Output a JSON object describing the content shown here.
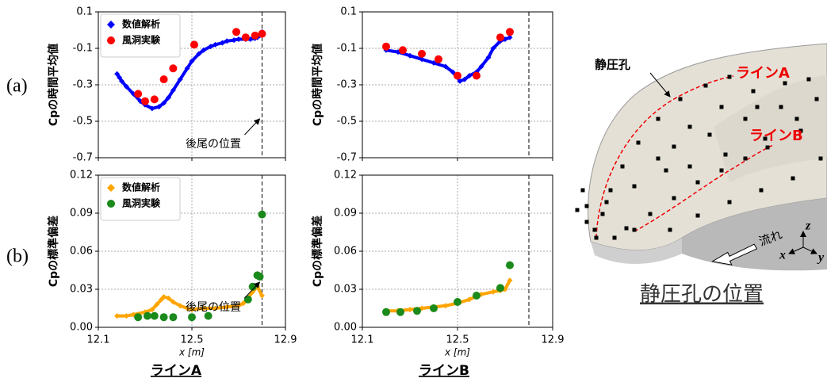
{
  "panels": [
    "(a)",
    "(b)"
  ],
  "columns": [
    "ラインA",
    "ラインB"
  ],
  "illustration": {
    "hole_label": "静圧孔",
    "line_a": "ラインA",
    "line_b": "ラインB",
    "flow": "流れ",
    "axes": [
      "x",
      "y",
      "z"
    ],
    "caption": "静圧孔の位置"
  },
  "chart_data": [
    {
      "type": "scatter",
      "ylabel": "Cpの時間平均値",
      "xlim": [
        12.1,
        12.9
      ],
      "xticks": [
        12.1,
        12.5,
        12.9
      ],
      "ylim": [
        -0.7,
        0.1
      ],
      "yticks": [
        -0.7,
        -0.5,
        -0.3,
        -0.1,
        0.1
      ],
      "grid": true,
      "legend": "upper left",
      "vline": 12.8,
      "annotation": "後尾の位置",
      "series": [
        {
          "name": "数値解析",
          "color": "#0000ff",
          "marker": "diamond",
          "line": true,
          "x": [
            12.18,
            12.19,
            12.2,
            12.22,
            12.25,
            12.28,
            12.3,
            12.33,
            12.36,
            12.38,
            12.4,
            12.42,
            12.45,
            12.48,
            12.5,
            12.53,
            12.55,
            12.58,
            12.6,
            12.63,
            12.65,
            12.68,
            12.7,
            12.73,
            12.75,
            12.77,
            12.78,
            12.79,
            12.8
          ],
          "values": [
            -0.24,
            -0.26,
            -0.28,
            -0.31,
            -0.35,
            -0.39,
            -0.41,
            -0.43,
            -0.42,
            -0.4,
            -0.37,
            -0.33,
            -0.27,
            -0.21,
            -0.17,
            -0.13,
            -0.11,
            -0.09,
            -0.08,
            -0.07,
            -0.06,
            -0.055,
            -0.05,
            -0.05,
            -0.05,
            -0.045,
            -0.04,
            -0.03,
            -0.01
          ]
        },
        {
          "name": "風洞実験",
          "color": "#ff0000",
          "marker": "circle",
          "line": false,
          "x": [
            12.27,
            12.3,
            12.34,
            12.38,
            12.42,
            12.51,
            12.69,
            12.73,
            12.77,
            12.8
          ],
          "values": [
            -0.35,
            -0.39,
            -0.38,
            -0.27,
            -0.21,
            -0.08,
            -0.01,
            -0.04,
            -0.03,
            -0.02
          ]
        }
      ]
    },
    {
      "type": "scatter",
      "ylabel": "Cpの時間平均値",
      "xlim": [
        12.1,
        12.9
      ],
      "xticks": [
        12.1,
        12.5,
        12.9
      ],
      "ylim": [
        -0.7,
        0.1
      ],
      "yticks": [
        -0.7,
        -0.5,
        -0.3,
        -0.1,
        0.1
      ],
      "grid": true,
      "vline": 12.8,
      "series": [
        {
          "color": "#0000ff",
          "marker": "diamond",
          "line": true,
          "x": [
            12.2,
            12.25,
            12.3,
            12.35,
            12.4,
            12.45,
            12.48,
            12.5,
            12.51,
            12.53,
            12.55,
            12.58,
            12.6,
            12.63,
            12.65,
            12.68,
            12.7,
            12.72
          ],
          "values": [
            -0.11,
            -0.12,
            -0.14,
            -0.16,
            -0.18,
            -0.2,
            -0.23,
            -0.26,
            -0.28,
            -0.27,
            -0.25,
            -0.23,
            -0.2,
            -0.15,
            -0.1,
            -0.06,
            -0.05,
            -0.04
          ]
        },
        {
          "color": "#ff0000",
          "marker": "circle",
          "line": false,
          "x": [
            12.2,
            12.27,
            12.35,
            12.42,
            12.5,
            12.58,
            12.68,
            12.72
          ],
          "values": [
            -0.09,
            -0.11,
            -0.13,
            -0.16,
            -0.25,
            -0.25,
            -0.04,
            -0.01
          ]
        }
      ]
    },
    {
      "type": "scatter",
      "ylabel": "Cpの標準偏差",
      "xlabel": "x [m]",
      "xlim": [
        12.1,
        12.9
      ],
      "xticks": [
        12.1,
        12.5,
        12.9
      ],
      "ylim": [
        0,
        0.12
      ],
      "yticks": [
        {
          "value": 0,
          "label": "0.00"
        },
        {
          "value": 0.03,
          "label": "0.03"
        },
        {
          "value": 0.06,
          "label": "0.06"
        },
        {
          "value": 0.09,
          "label": "0.09"
        },
        {
          "value": 0.12,
          "label": "0.12"
        }
      ],
      "grid": true,
      "legend": "upper left",
      "vline": 12.8,
      "annotation": "後尾の位置",
      "series": [
        {
          "name": "数値解析",
          "color": "#ffa500",
          "marker": "diamond",
          "line": true,
          "x": [
            12.18,
            12.22,
            12.25,
            12.3,
            12.33,
            12.35,
            12.37,
            12.38,
            12.4,
            12.42,
            12.45,
            12.48,
            12.5,
            12.55,
            12.6,
            12.65,
            12.7,
            12.72,
            12.74,
            12.76,
            12.78,
            12.8
          ],
          "values": [
            0.009,
            0.009,
            0.01,
            0.012,
            0.014,
            0.018,
            0.022,
            0.024,
            0.023,
            0.02,
            0.017,
            0.015,
            0.014,
            0.015,
            0.015,
            0.016,
            0.017,
            0.019,
            0.023,
            0.028,
            0.032,
            0.025
          ]
        },
        {
          "name": "風洞実験",
          "color": "#1a8a1a",
          "marker": "circle",
          "line": false,
          "x": [
            12.27,
            12.31,
            12.34,
            12.38,
            12.42,
            12.5,
            12.57,
            12.74,
            12.76,
            12.78,
            12.79,
            12.8
          ],
          "values": [
            0.008,
            0.009,
            0.009,
            0.008,
            0.008,
            0.008,
            0.009,
            0.022,
            0.032,
            0.041,
            0.04,
            0.089
          ]
        }
      ]
    },
    {
      "type": "scatter",
      "ylabel": "Cpの標準偏差",
      "xlabel": "x [m]",
      "xlim": [
        12.1,
        12.9
      ],
      "xticks": [
        12.1,
        12.5,
        12.9
      ],
      "ylim": [
        0,
        0.12
      ],
      "yticks": [
        {
          "value": 0,
          "label": "0.00"
        },
        {
          "value": 0.03,
          "label": "0.03"
        },
        {
          "value": 0.06,
          "label": "0.06"
        },
        {
          "value": 0.09,
          "label": "0.09"
        },
        {
          "value": 0.12,
          "label": "0.12"
        }
      ],
      "grid": true,
      "vline": 12.8,
      "series": [
        {
          "color": "#ffa500",
          "marker": "diamond",
          "line": true,
          "x": [
            12.2,
            12.25,
            12.3,
            12.35,
            12.4,
            12.45,
            12.5,
            12.55,
            12.6,
            12.65,
            12.68,
            12.7,
            12.72
          ],
          "values": [
            0.013,
            0.013,
            0.014,
            0.015,
            0.016,
            0.017,
            0.019,
            0.022,
            0.026,
            0.028,
            0.029,
            0.03,
            0.037
          ]
        },
        {
          "color": "#1a8a1a",
          "marker": "circle",
          "line": false,
          "x": [
            12.2,
            12.26,
            12.33,
            12.4,
            12.5,
            12.58,
            12.68,
            12.72
          ],
          "values": [
            0.012,
            0.012,
            0.013,
            0.015,
            0.02,
            0.025,
            0.031,
            0.049
          ]
        }
      ]
    }
  ]
}
